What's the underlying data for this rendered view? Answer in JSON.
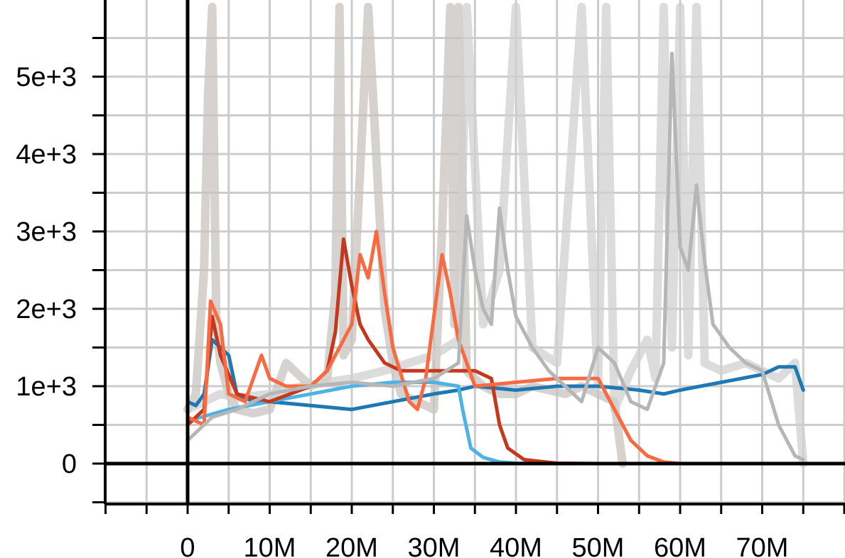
{
  "chart_data": {
    "type": "line",
    "title": "",
    "xlabel": "",
    "ylabel": "",
    "xlim": [
      -10000000,
      80000000
    ],
    "ylim": [
      -500,
      6000
    ],
    "grid": true,
    "legend": "none",
    "x_ticks": [
      {
        "value": 0,
        "label": "0"
      },
      {
        "value": 10000000,
        "label": "10M"
      },
      {
        "value": 20000000,
        "label": "20M"
      },
      {
        "value": 30000000,
        "label": "30M"
      },
      {
        "value": 40000000,
        "label": "40M"
      },
      {
        "value": 50000000,
        "label": "50M"
      },
      {
        "value": 60000000,
        "label": "60M"
      },
      {
        "value": 70000000,
        "label": "70M"
      }
    ],
    "y_ticks": [
      {
        "value": 0,
        "label": "0"
      },
      {
        "value": 1000,
        "label": "1e+3"
      },
      {
        "value": 2000,
        "label": "2e+3"
      },
      {
        "value": 3000,
        "label": "3e+3"
      },
      {
        "value": 4000,
        "label": "4e+3"
      },
      {
        "value": 5000,
        "label": "5e+3"
      }
    ],
    "raw_series": [
      {
        "color": "#c8c3c0",
        "x": [
          0,
          1000000,
          2000000,
          2500000,
          3000000,
          3500000,
          4000000,
          5000000,
          6000000,
          8000000,
          10000000,
          12000000,
          15000000,
          17000000,
          18000000,
          18500000,
          19000000,
          20000000,
          22000000,
          24000000,
          25000000,
          26000000,
          28000000,
          30000000,
          31000000,
          32000000,
          32500000,
          33000000,
          34000000,
          36000000,
          38000000,
          40000000,
          42000000,
          44000000,
          46000000,
          48000000,
          50000000,
          52000000,
          53000000
        ],
        "y": [
          700,
          900,
          2500,
          4800,
          5900,
          1800,
          1300,
          900,
          700,
          650,
          700,
          1300,
          1000,
          1100,
          2200,
          5900,
          1400,
          1600,
          5900,
          2000,
          1300,
          900,
          800,
          700,
          3000,
          5900,
          1800,
          5900,
          1200,
          1000,
          900,
          900,
          1000,
          950,
          900,
          1000,
          900,
          800,
          0
        ]
      },
      {
        "color": "#d0d0d0",
        "x": [
          0,
          2000000,
          4000000,
          6000000,
          10000000,
          14000000,
          20000000,
          24000000,
          30000000,
          33000000,
          34000000,
          36000000,
          38000000,
          40000000,
          42000000,
          45000000,
          48000000,
          50000000,
          51000000,
          52000000,
          54000000,
          56000000,
          57000000,
          58000000,
          59000000,
          60000000,
          61000000,
          62000000,
          63000000,
          65000000,
          68000000,
          70000000,
          72000000,
          74000000,
          75000000
        ],
        "y": [
          700,
          800,
          900,
          850,
          900,
          1000,
          1100,
          1200,
          1400,
          1600,
          5900,
          1800,
          2500,
          5900,
          1500,
          1300,
          5900,
          1000,
          5900,
          700,
          1200,
          1600,
          1100,
          5900,
          1500,
          5900,
          1400,
          5900,
          1300,
          1200,
          1300,
          1200,
          1100,
          1300,
          0
        ]
      }
    ],
    "series": [
      {
        "color": "#1f78b4",
        "x": [
          0,
          1000000,
          2000000,
          3000000,
          4000000,
          5000000,
          6000000,
          8000000,
          10000000,
          15000000,
          20000000,
          25000000,
          30000000,
          33000000,
          35000000,
          40000000,
          45000000,
          50000000,
          55000000,
          58000000,
          60000000,
          65000000,
          70000000,
          72000000,
          74000000,
          75000000
        ],
        "y": [
          800,
          750,
          900,
          1600,
          1500,
          1400,
          900,
          800,
          800,
          750,
          700,
          800,
          900,
          950,
          1000,
          950,
          1000,
          1000,
          950,
          900,
          950,
          1050,
          1150,
          1250,
          1250,
          950
        ]
      },
      {
        "color": "#4eb3e4",
        "x": [
          0,
          5000000,
          10000000,
          15000000,
          20000000,
          25000000,
          30000000,
          33000000,
          33500000,
          34500000,
          36000000,
          38000000,
          40000000,
          45000000
        ],
        "y": [
          550,
          700,
          800,
          900,
          1000,
          1050,
          1050,
          1000,
          700,
          200,
          80,
          20,
          5,
          0
        ]
      },
      {
        "color": "#c4391d",
        "x": [
          0,
          2000000,
          3000000,
          4000000,
          6000000,
          10000000,
          15000000,
          17000000,
          18000000,
          19000000,
          20000000,
          21000000,
          22000000,
          24000000,
          26000000,
          30000000,
          35000000,
          37000000,
          38000000,
          39000000,
          41000000,
          45000000,
          50000000
        ],
        "y": [
          500,
          700,
          1900,
          1400,
          900,
          800,
          1000,
          1200,
          1700,
          2900,
          2300,
          1800,
          1600,
          1300,
          1200,
          1200,
          1200,
          1100,
          500,
          200,
          50,
          5,
          0
        ]
      },
      {
        "color": "#f86b42",
        "x": [
          0,
          2000000,
          2800000,
          4000000,
          5000000,
          7000000,
          9000000,
          10000000,
          12000000,
          15000000,
          17000000,
          20000000,
          21000000,
          22000000,
          23000000,
          24000000,
          25000000,
          27000000,
          28000000,
          29000000,
          31000000,
          32000000,
          33000000,
          35000000,
          40000000,
          45000000,
          50000000,
          52000000,
          54000000,
          56000000,
          58000000,
          60000000
        ],
        "y": [
          600,
          500,
          2100,
          1800,
          900,
          800,
          1400,
          1100,
          1000,
          1000,
          1200,
          1800,
          2700,
          2400,
          3000,
          2200,
          1500,
          800,
          700,
          1100,
          2700,
          2200,
          1600,
          1000,
          1050,
          1100,
          1100,
          700,
          300,
          100,
          20,
          0
        ]
      },
      {
        "color": "#b6b6b6",
        "x": [
          0,
          3000000,
          6000000,
          10000000,
          15000000,
          20000000,
          25000000,
          30000000,
          33000000,
          34000000,
          35000000,
          36000000,
          37000000,
          38000000,
          39000000,
          40000000,
          42000000,
          44000000,
          46000000,
          48000000,
          50000000,
          52000000,
          54000000,
          56000000,
          58000000,
          59000000,
          60000000,
          61000000,
          62000000,
          63000000,
          64000000,
          66000000,
          68000000,
          70000000,
          72000000,
          74000000,
          75000000
        ],
        "y": [
          300,
          600,
          700,
          900,
          1000,
          1050,
          1000,
          1100,
          1300,
          3200,
          2500,
          2000,
          1800,
          3300,
          2500,
          1900,
          1500,
          1200,
          1000,
          800,
          1500,
          1300,
          800,
          700,
          1300,
          5300,
          2800,
          2500,
          3600,
          2600,
          1800,
          1500,
          1300,
          1200,
          500,
          100,
          50
        ]
      }
    ]
  }
}
